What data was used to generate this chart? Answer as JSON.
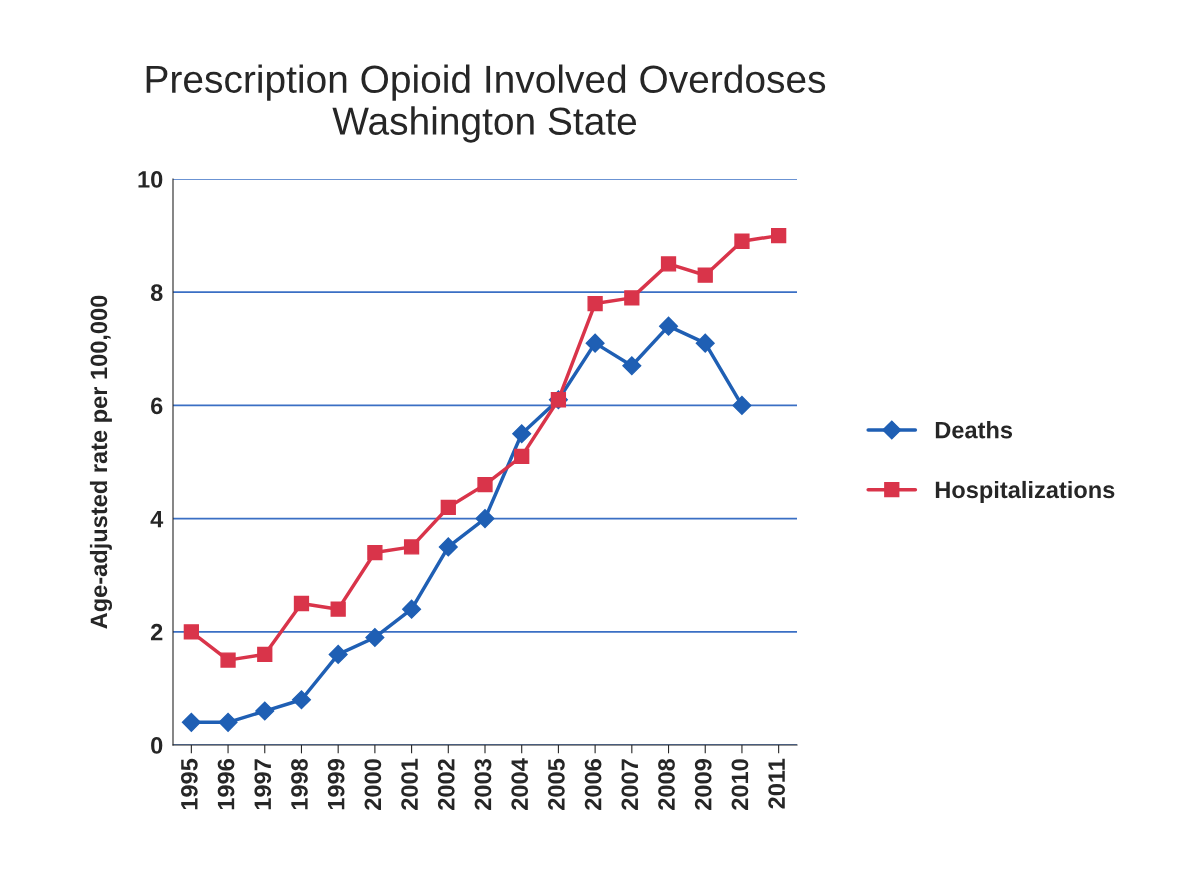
{
  "chart_data": {
    "type": "line",
    "title": "Prescription Opioid Involved Overdoses\nWashington State",
    "ylabel": "Age-adjusted rate per 100,000",
    "categories": [
      "1995",
      "1996",
      "1997",
      "1998",
      "1999",
      "2000",
      "2001",
      "2002",
      "2003",
      "2004",
      "2005",
      "2006",
      "2007",
      "2008",
      "2009",
      "2010",
      "2011"
    ],
    "series": [
      {
        "name": "Deaths",
        "color": "#1f5fb4",
        "marker": "diamond",
        "values": [
          0.4,
          0.4,
          0.6,
          0.8,
          1.6,
          1.9,
          2.4,
          3.5,
          4.0,
          5.5,
          6.1,
          7.1,
          6.7,
          7.4,
          7.1,
          6.0,
          null
        ]
      },
      {
        "name": "Hospitalizations",
        "color": "#d9344a",
        "marker": "square",
        "values": [
          2.0,
          1.5,
          1.6,
          2.5,
          2.4,
          3.4,
          3.5,
          4.2,
          4.6,
          5.1,
          6.1,
          7.8,
          7.9,
          8.5,
          8.3,
          8.9,
          9.0
        ]
      }
    ],
    "ylim": [
      0,
      10
    ],
    "yticks": [
      0,
      2,
      4,
      6,
      8,
      10
    ],
    "grid": "y",
    "legend": "right"
  }
}
